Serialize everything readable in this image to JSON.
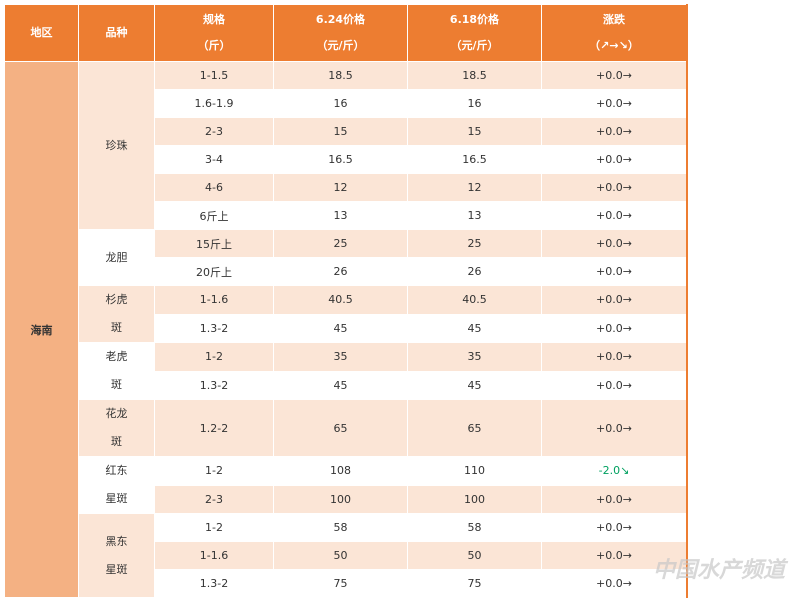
{
  "table": {
    "header": [
      [
        "地区"
      ],
      [
        "品种"
      ],
      [
        "规格",
        "（斤）"
      ],
      [
        "6.24价格",
        "（元/斤）"
      ],
      [
        "6.18价格",
        "（元/斤）"
      ],
      [
        "涨跌",
        "（↗→↘）"
      ]
    ],
    "region": "海南",
    "groups": [
      {
        "name": [
          "珍珠"
        ],
        "rows": [
          [
            "1-1.5",
            "18.5",
            "18.5",
            "+0.0→"
          ],
          [
            "1.6-1.9",
            "16",
            "16",
            "+0.0→"
          ],
          [
            "2-3",
            "15",
            "15",
            "+0.0→"
          ],
          [
            "3-4",
            "16.5",
            "16.5",
            "+0.0→"
          ],
          [
            "4-6",
            "12",
            "12",
            "+0.0→"
          ],
          [
            "6斤上",
            "13",
            "13",
            "+0.0→"
          ]
        ]
      },
      {
        "name": [
          "龙胆"
        ],
        "rows": [
          [
            "15斤上",
            "25",
            "25",
            "+0.0→"
          ],
          [
            "20斤上",
            "26",
            "26",
            "+0.0→"
          ]
        ]
      },
      {
        "name": [
          "杉虎",
          "斑"
        ],
        "rows": [
          [
            "1-1.6",
            "40.5",
            "40.5",
            "+0.0→"
          ],
          [
            "1.3-2",
            "45",
            "45",
            "+0.0→"
          ]
        ]
      },
      {
        "name": [
          "老虎",
          "斑"
        ],
        "rows": [
          [
            "1-2",
            "35",
            "35",
            "+0.0→"
          ],
          [
            "1.3-2",
            "45",
            "45",
            "+0.0→"
          ]
        ]
      },
      {
        "name": [
          "花龙",
          "斑"
        ],
        "rows": [
          [
            "1.2-2",
            "65",
            "65",
            "+0.0→"
          ]
        ]
      },
      {
        "name": [
          "红东",
          "星斑"
        ],
        "rows": [
          [
            "1-2",
            "108",
            "110",
            "-2.0↘"
          ],
          [
            "2-3",
            "100",
            "100",
            "+0.0→"
          ]
        ]
      },
      {
        "name": [
          "黑东",
          "星斑"
        ],
        "rows": [
          [
            "1-2",
            "58",
            "58",
            "+0.0→"
          ],
          [
            "1-1.6",
            "50",
            "50",
            "+0.0→"
          ],
          [
            "1.3-2",
            "75",
            "75",
            "+0.0→"
          ]
        ]
      }
    ]
  },
  "watermark": "中国水产频道"
}
